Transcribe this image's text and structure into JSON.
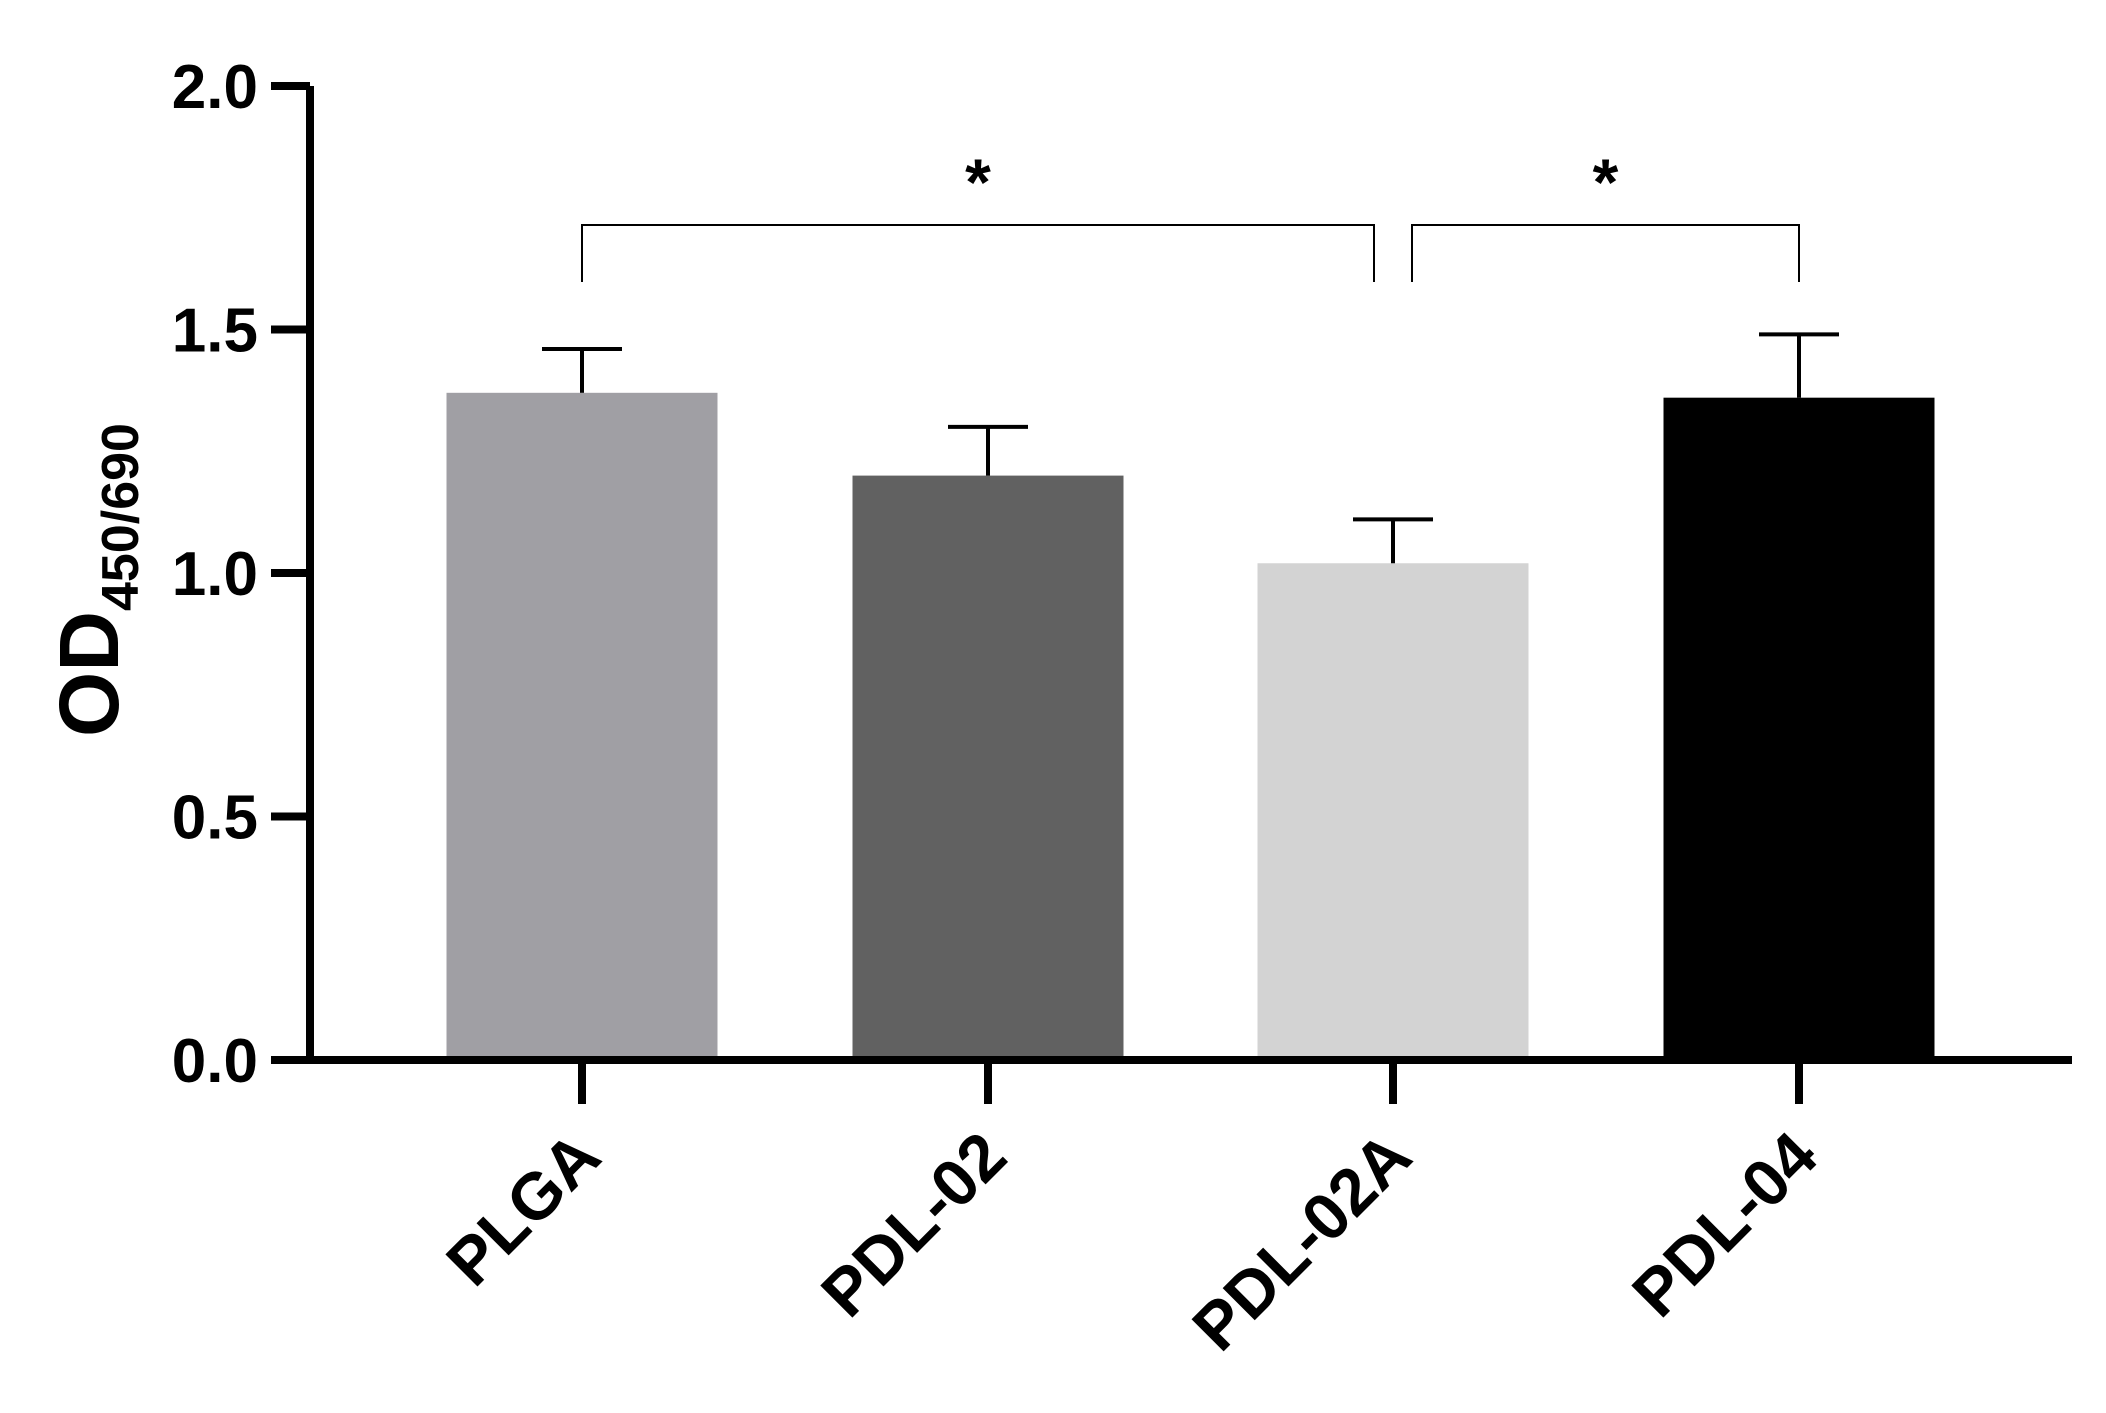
{
  "chart_data": {
    "type": "bar",
    "categories": [
      "PLGA",
      "PDL-02",
      "PDL-02A",
      "PDL-04"
    ],
    "values": [
      1.37,
      1.2,
      1.02,
      1.36
    ],
    "errors": [
      0.09,
      0.1,
      0.09,
      0.13
    ],
    "colors": [
      "#a09fa4",
      "#616161",
      "#d3d3d3",
      "#000000"
    ],
    "ylabel": {
      "main": "OD",
      "sub": "450/690"
    },
    "ylim": [
      0,
      2
    ],
    "yticks": [
      "0.0",
      "0.5",
      "1.0",
      "1.5",
      "2.0"
    ],
    "grid": false,
    "significance": [
      {
        "from": 0,
        "to": 2,
        "label": "*"
      },
      {
        "from": 2,
        "to": 3,
        "label": "*"
      }
    ]
  }
}
